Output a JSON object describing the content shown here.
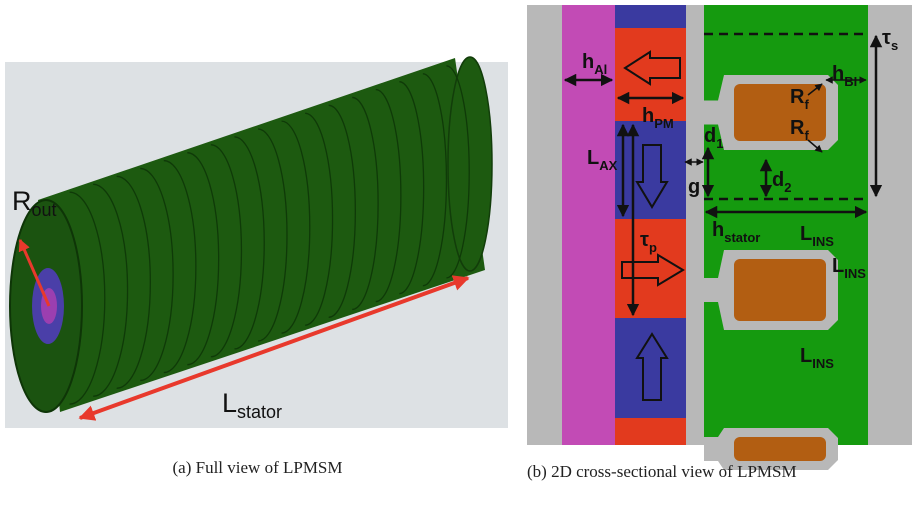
{
  "panel_a": {
    "labels": [
      {
        "main": "R",
        "sub": "out"
      },
      {
        "main": "L",
        "sub": "stator"
      }
    ],
    "caption": "(a) Full view of LPMSM"
  },
  "panel_b": {
    "labels": [
      {
        "main": "h",
        "sub": "Al"
      },
      {
        "main": "h",
        "sub": "PM"
      },
      {
        "main": "L",
        "sub": "AX"
      },
      {
        "main": "τ",
        "sub": "p"
      },
      {
        "main": "g",
        "sub": ""
      },
      {
        "main": "d",
        "sub": "1"
      },
      {
        "main": "d",
        "sub": "2"
      },
      {
        "main": "h",
        "sub": "stator"
      },
      {
        "main": "L",
        "sub": "INS"
      },
      {
        "main": "L",
        "sub": "INS"
      },
      {
        "main": "L",
        "sub": "INS"
      },
      {
        "main": "R",
        "sub": "f"
      },
      {
        "main": "R",
        "sub": "f"
      },
      {
        "main": "h",
        "sub": "BI"
      },
      {
        "main": "τ",
        "sub": "s"
      }
    ],
    "caption": "(b) 2D cross-sectional view of LPMSM"
  }
}
